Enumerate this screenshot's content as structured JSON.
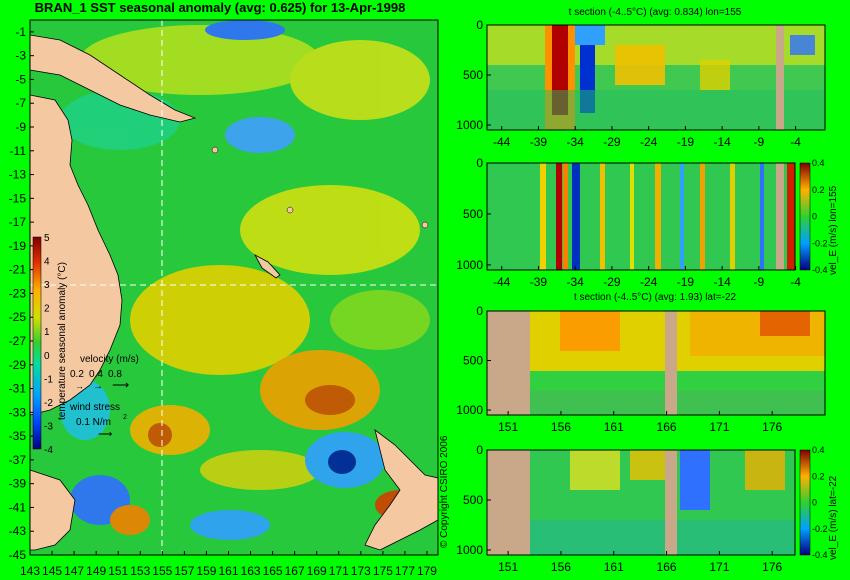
{
  "main_title": "BRAN_1  SST seasonal anomaly  (avg: 0.625)  for 13-Apr-1998",
  "copyright": "© Copyright CSIRO 2006",
  "colors": {
    "background": "#00ff00",
    "land": "#f4c8a0",
    "ocean_mid": "#22c84a"
  },
  "chart_data": [
    {
      "type": "heatmap",
      "title": "BRAN_1  SST seasonal anomaly  (avg: 0.625)  for 13-Apr-1998",
      "y_ticks": [
        "-1",
        "-3",
        "-5",
        "-7",
        "-9",
        "-11",
        "-13",
        "-15",
        "-17",
        "-19",
        "-21",
        "-23",
        "-25",
        "-27",
        "-29",
        "-31",
        "-33",
        "-35",
        "-37",
        "-39",
        "-41",
        "-43",
        "-45"
      ],
      "x_ticks": [
        "143",
        "145",
        "147",
        "149",
        "151",
        "153",
        "155",
        "157",
        "159",
        "161",
        "163",
        "165",
        "167",
        "169",
        "171",
        "173",
        "175",
        "177",
        "179"
      ],
      "ylim": [
        -45,
        0
      ],
      "xlim": [
        143,
        180
      ],
      "average": 0.625,
      "colorbar": {
        "label": "temperature seasonal anomaly (°C)",
        "ticks": [
          "5",
          "4",
          "3",
          "2",
          "1",
          "0",
          "-1",
          "-2",
          "-3",
          "-4"
        ],
        "range": [
          -4,
          5
        ]
      },
      "velocity_key": {
        "label": "velocity (m/s)",
        "values": [
          "0.2",
          "0.4",
          "0.8"
        ]
      },
      "wind_key": {
        "label": "wind stress",
        "value": "0.1 N/m",
        "superscript": "2"
      },
      "crosshair": {
        "lon": 155,
        "lat": -22
      }
    },
    {
      "type": "heatmap",
      "title": "t section (-4..5°C) (avg: 0.834) lon=155",
      "x_ticks": [
        "-44",
        "-39",
        "-34",
        "-29",
        "-24",
        "-19",
        "-14",
        "-9",
        "-4"
      ],
      "y_ticks": [
        "0",
        "500",
        "1000"
      ],
      "xlim": [
        -46,
        0
      ],
      "ylim": [
        1050,
        0
      ],
      "average": 0.834
    },
    {
      "type": "heatmap",
      "title": "",
      "x_ticks": [
        "-44",
        "-39",
        "-34",
        "-29",
        "-24",
        "-19",
        "-14",
        "-9",
        "-4"
      ],
      "y_ticks": [
        "0",
        "500",
        "1000"
      ],
      "xlim": [
        -46,
        0
      ],
      "ylim": [
        1050,
        0
      ],
      "colorbar": {
        "label": "vel_E (m/s) lon=155",
        "ticks": [
          "0.4",
          "0.2",
          "0",
          "-0.2",
          "-0.4"
        ],
        "range": [
          -0.4,
          0.4
        ]
      }
    },
    {
      "type": "heatmap",
      "title": "t section (-4..5°C) (avg: 1.93) lat=-22",
      "x_ticks": [
        "151",
        "156",
        "161",
        "166",
        "171",
        "176"
      ],
      "y_ticks": [
        "0",
        "500",
        "1000"
      ],
      "xlim": [
        149,
        181
      ],
      "ylim": [
        1050,
        0
      ],
      "average": 1.93
    },
    {
      "type": "heatmap",
      "title": "",
      "x_ticks": [
        "151",
        "156",
        "161",
        "166",
        "171",
        "176"
      ],
      "y_ticks": [
        "0",
        "500",
        "1000"
      ],
      "xlim": [
        149,
        181
      ],
      "ylim": [
        1050,
        0
      ],
      "colorbar": {
        "label": "vel_E (m/s) lat=-22",
        "ticks": [
          "0.4",
          "0.2",
          "0",
          "-0.2",
          "-0.4"
        ],
        "range": [
          -0.4,
          0.4
        ]
      }
    }
  ]
}
